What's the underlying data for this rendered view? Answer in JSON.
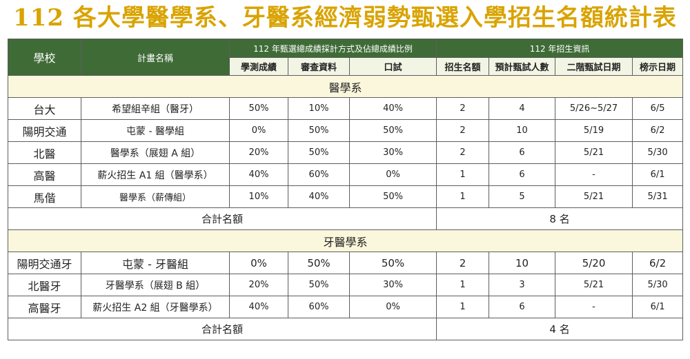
{
  "title": "112 各大學醫學系、牙醫系經濟弱勢甄選入學招生名額統計表",
  "headers": {
    "school": "學校",
    "plan": "計畫名稱",
    "ratio_group": "112 年甄選總成績採計方式及佔總成績比例",
    "info_group": "112 年招生資訊",
    "gsat": "學測成績",
    "review": "審查資料",
    "interview": "口試",
    "quota": "招生名額",
    "expected": "預計甄試人數",
    "stage2_date": "二階甄試日期",
    "announce_date": "榜示日期"
  },
  "sections": [
    {
      "name": "醫學系",
      "rows": [
        {
          "school": "台大",
          "plan": "希望組辛組（醫牙）",
          "gsat": "50%",
          "review": "10%",
          "interview": "40%",
          "quota": "2",
          "expected": "4",
          "stage2": "5/26~5/27",
          "announce": "6/5"
        },
        {
          "school": "陽明交通",
          "plan": "屯蒙 - 醫學組",
          "gsat": "0%",
          "review": "50%",
          "interview": "50%",
          "quota": "2",
          "expected": "10",
          "stage2": "5/19",
          "announce": "6/2"
        },
        {
          "school": "北醫",
          "plan": "醫學系（展翅 A 組）",
          "gsat": "20%",
          "review": "50%",
          "interview": "30%",
          "quota": "2",
          "expected": "6",
          "stage2": "5/21",
          "announce": "5/30"
        },
        {
          "school": "高醫",
          "plan": "薪火招生 A1 組（醫學系）",
          "gsat": "40%",
          "review": "60%",
          "interview": "0%",
          "quota": "1",
          "expected": "6",
          "stage2": "-",
          "announce": "6/1"
        },
        {
          "school": "馬偕",
          "plan": "醫學系（薪傳組）",
          "gsat": "10%",
          "review": "40%",
          "interview": "50%",
          "quota": "1",
          "expected": "5",
          "stage2": "5/21",
          "announce": "5/31"
        }
      ],
      "total_label": "合計名額",
      "total_value": "8 名"
    },
    {
      "name": "牙醫學系",
      "rows": [
        {
          "school": "陽明交通牙",
          "plan": "屯蒙 - 牙醫組",
          "gsat": "0%",
          "review": "50%",
          "interview": "50%",
          "quota": "2",
          "expected": "10",
          "stage2": "5/20",
          "announce": "6/2"
        },
        {
          "school": "北醫牙",
          "plan": "牙醫學系（展翅 B 組）",
          "gsat": "20%",
          "review": "50%",
          "interview": "30%",
          "quota": "1",
          "expected": "3",
          "stage2": "5/21",
          "announce": "5/30"
        },
        {
          "school": "高醫牙",
          "plan": "薪火招生 A2 組（牙醫學系）",
          "gsat": "40%",
          "review": "60%",
          "interview": "0%",
          "quota": "1",
          "expected": "6",
          "stage2": "-",
          "announce": "6/1"
        }
      ],
      "total_label": "合計名額",
      "total_value": "4 名"
    }
  ]
}
